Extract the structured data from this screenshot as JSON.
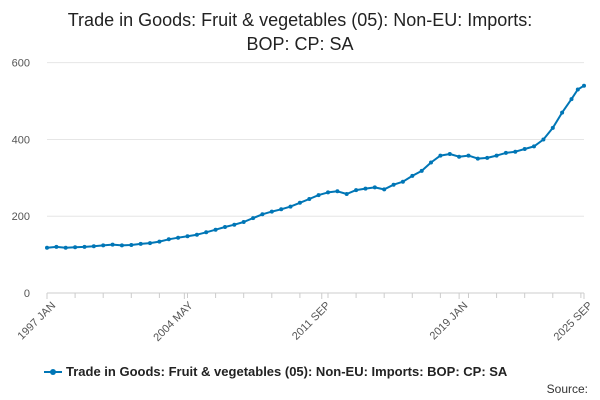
{
  "chart_data": {
    "type": "line",
    "title_lines": [
      "Trade in Goods: Fruit & vegetables (05): Non-EU: Imports:",
      "BOP: CP: SA"
    ],
    "xlabel": "",
    "ylabel": "",
    "x_start": "1997 JAN",
    "x_end": "2025 SEP",
    "x_tick_labels": [
      "1997 JAN",
      "2004 MAY",
      "2011 SEP",
      "2019 JAN",
      "2025 SEP"
    ],
    "x_tick_positions": [
      "1997-01",
      "2004-05",
      "2011-09",
      "2019-01",
      "2025-09"
    ],
    "ylim": [
      0,
      620
    ],
    "y_ticks": [
      0,
      200,
      400,
      600
    ],
    "grid": "horizontal",
    "legend_position": "bottom",
    "series": [
      {
        "name": "Trade in Goods: Fruit & vegetables (05): Non-EU: Imports: BOP: CP: SA",
        "color": "#0076b6",
        "points": [
          [
            "1997-01",
            118
          ],
          [
            "1997-07",
            120
          ],
          [
            "1998-01",
            118
          ],
          [
            "1998-07",
            119
          ],
          [
            "1999-01",
            120
          ],
          [
            "1999-07",
            122
          ],
          [
            "2000-01",
            124
          ],
          [
            "2000-07",
            126
          ],
          [
            "2001-01",
            124
          ],
          [
            "2001-07",
            125
          ],
          [
            "2002-01",
            128
          ],
          [
            "2002-07",
            130
          ],
          [
            "2003-01",
            134
          ],
          [
            "2003-07",
            140
          ],
          [
            "2004-01",
            144
          ],
          [
            "2004-07",
            148
          ],
          [
            "2005-01",
            152
          ],
          [
            "2005-07",
            158
          ],
          [
            "2006-01",
            165
          ],
          [
            "2006-07",
            172
          ],
          [
            "2007-01",
            178
          ],
          [
            "2007-07",
            185
          ],
          [
            "2008-01",
            195
          ],
          [
            "2008-07",
            205
          ],
          [
            "2009-01",
            212
          ],
          [
            "2009-07",
            218
          ],
          [
            "2010-01",
            225
          ],
          [
            "2010-07",
            235
          ],
          [
            "2011-01",
            245
          ],
          [
            "2011-07",
            255
          ],
          [
            "2012-01",
            262
          ],
          [
            "2012-07",
            265
          ],
          [
            "2013-01",
            258
          ],
          [
            "2013-07",
            268
          ],
          [
            "2014-01",
            272
          ],
          [
            "2014-07",
            275
          ],
          [
            "2015-01",
            270
          ],
          [
            "2015-07",
            282
          ],
          [
            "2016-01",
            290
          ],
          [
            "2016-07",
            305
          ],
          [
            "2017-01",
            318
          ],
          [
            "2017-07",
            340
          ],
          [
            "2018-01",
            358
          ],
          [
            "2018-07",
            362
          ],
          [
            "2019-01",
            355
          ],
          [
            "2019-07",
            358
          ],
          [
            "2020-01",
            350
          ],
          [
            "2020-07",
            352
          ],
          [
            "2021-01",
            358
          ],
          [
            "2021-07",
            365
          ],
          [
            "2022-01",
            368
          ],
          [
            "2022-07",
            375
          ],
          [
            "2023-01",
            382
          ],
          [
            "2023-07",
            400
          ],
          [
            "2024-01",
            430
          ],
          [
            "2024-07",
            470
          ],
          [
            "2025-01",
            505
          ],
          [
            "2025-05",
            530
          ],
          [
            "2025-09",
            540
          ]
        ]
      }
    ]
  },
  "source_label": "Source:"
}
